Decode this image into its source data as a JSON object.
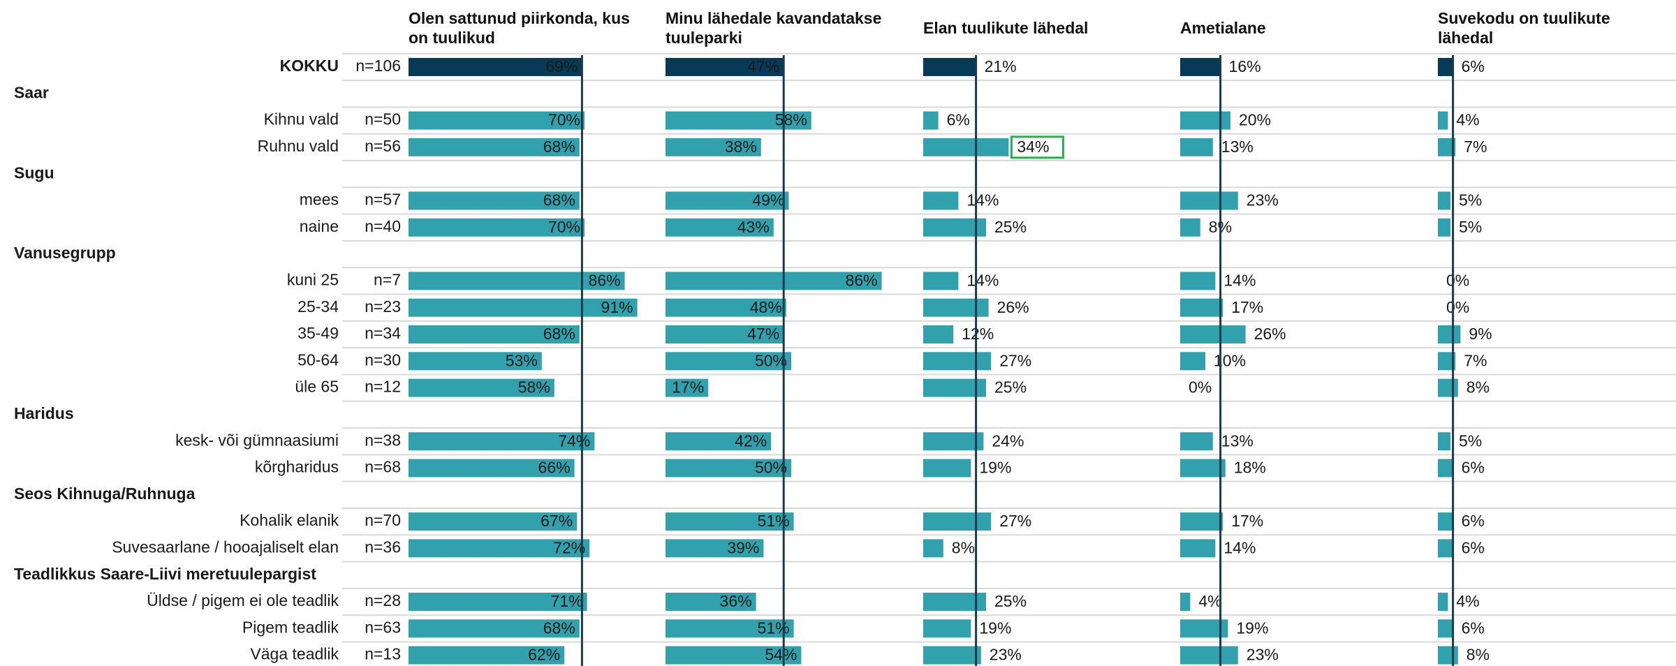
{
  "columns": [
    "Olen sattunud piirkonda, kus on tuulikud",
    "Minu lähedale kavandatakse tuuleparki",
    "Elan tuulikute lähedal",
    "Ametialane",
    "Suvekodu on tuulikute lähedal"
  ],
  "label_inside": [
    true,
    true,
    false,
    false,
    false
  ],
  "total_color": "#073a56",
  "bar_color": "#31a2ad",
  "reference_color": "#1b3a4b",
  "highlight": {
    "row": 3,
    "column": 2,
    "color": "#22b14c"
  },
  "rows": [
    {
      "label": "KOKKU",
      "n": "n=106",
      "values": [
        69,
        47,
        21,
        16,
        6
      ],
      "value_labels": [
        "69%",
        "47%",
        "21%",
        "16%",
        "6%"
      ]
    },
    {
      "group": "Saar"
    },
    {
      "label": "Kihnu vald",
      "n": "n=50",
      "values": [
        70,
        58,
        6,
        20,
        4
      ],
      "value_labels": [
        "70%",
        "58%",
        "6%",
        "20%",
        "4%"
      ]
    },
    {
      "label": "Ruhnu vald",
      "n": "n=56",
      "values": [
        68,
        38,
        34,
        13,
        7
      ],
      "value_labels": [
        "68%",
        "38%",
        "34%",
        "13%",
        "7%"
      ]
    },
    {
      "group": "Sugu"
    },
    {
      "label": "mees",
      "n": "n=57",
      "values": [
        68,
        49,
        14,
        23,
        5
      ],
      "value_labels": [
        "68%",
        "49%",
        "14%",
        "23%",
        "5%"
      ]
    },
    {
      "label": "naine",
      "n": "n=40",
      "values": [
        70,
        43,
        25,
        8,
        5
      ],
      "value_labels": [
        "70%",
        "43%",
        "25%",
        "8%",
        "5%"
      ]
    },
    {
      "group": "Vanusegrupp"
    },
    {
      "label": "kuni 25",
      "n": "n=7",
      "values": [
        86,
        86,
        14,
        14,
        0
      ],
      "value_labels": [
        "86%",
        "86%",
        "14%",
        "14%",
        "0%"
      ]
    },
    {
      "label": "25-34",
      "n": "n=23",
      "values": [
        91,
        48,
        26,
        17,
        0
      ],
      "value_labels": [
        "91%",
        "48%",
        "26%",
        "17%",
        "0%"
      ]
    },
    {
      "label": "35-49",
      "n": "n=34",
      "values": [
        68,
        47,
        12,
        26,
        9
      ],
      "value_labels": [
        "68%",
        "47%",
        "12%",
        "26%",
        "9%"
      ]
    },
    {
      "label": "50-64",
      "n": "n=30",
      "values": [
        53,
        50,
        27,
        10,
        7
      ],
      "value_labels": [
        "53%",
        "50%",
        "27%",
        "10%",
        "7%"
      ]
    },
    {
      "label": "üle 65",
      "n": "n=12",
      "values": [
        58,
        17,
        25,
        0,
        8
      ],
      "value_labels": [
        "58%",
        "17%",
        "25%",
        "0%",
        "8%"
      ]
    },
    {
      "group": "Haridus"
    },
    {
      "label": "kesk- või gümnaasiumi",
      "n": "n=38",
      "values": [
        74,
        42,
        24,
        13,
        5
      ],
      "value_labels": [
        "74%",
        "42%",
        "24%",
        "13%",
        "5%"
      ]
    },
    {
      "label": "kõrgharidus",
      "n": "n=68",
      "values": [
        66,
        50,
        19,
        18,
        6
      ],
      "value_labels": [
        "66%",
        "50%",
        "19%",
        "18%",
        "6%"
      ]
    },
    {
      "group": "Seos Kihnuga/Ruhnuga"
    },
    {
      "label": "Kohalik elanik",
      "n": "n=70",
      "values": [
        67,
        51,
        27,
        17,
        6
      ],
      "value_labels": [
        "67%",
        "51%",
        "27%",
        "17%",
        "6%"
      ]
    },
    {
      "label": "Suvesaarlane / hooajaliselt elan",
      "n": "n=36",
      "values": [
        72,
        39,
        8,
        14,
        6
      ],
      "value_labels": [
        "72%",
        "39%",
        "8%",
        "14%",
        "6%"
      ]
    },
    {
      "group": "Teadlikkus Saare-Liivi meretuulepargist"
    },
    {
      "label": "Üldse / pigem ei ole teadlik",
      "n": "n=28",
      "values": [
        71,
        36,
        25,
        4,
        4
      ],
      "value_labels": [
        "71%",
        "36%",
        "25%",
        "4%",
        "4%"
      ]
    },
    {
      "label": "Pigem teadlik",
      "n": "n=63",
      "values": [
        68,
        51,
        19,
        19,
        6
      ],
      "value_labels": [
        "68%",
        "51%",
        "19%",
        "19%",
        "6%"
      ]
    },
    {
      "label": "Väga teadlik",
      "n": "n=13",
      "values": [
        62,
        54,
        23,
        23,
        8
      ],
      "value_labels": [
        "62%",
        "54%",
        "23%",
        "23%",
        "8%"
      ]
    }
  ]
}
